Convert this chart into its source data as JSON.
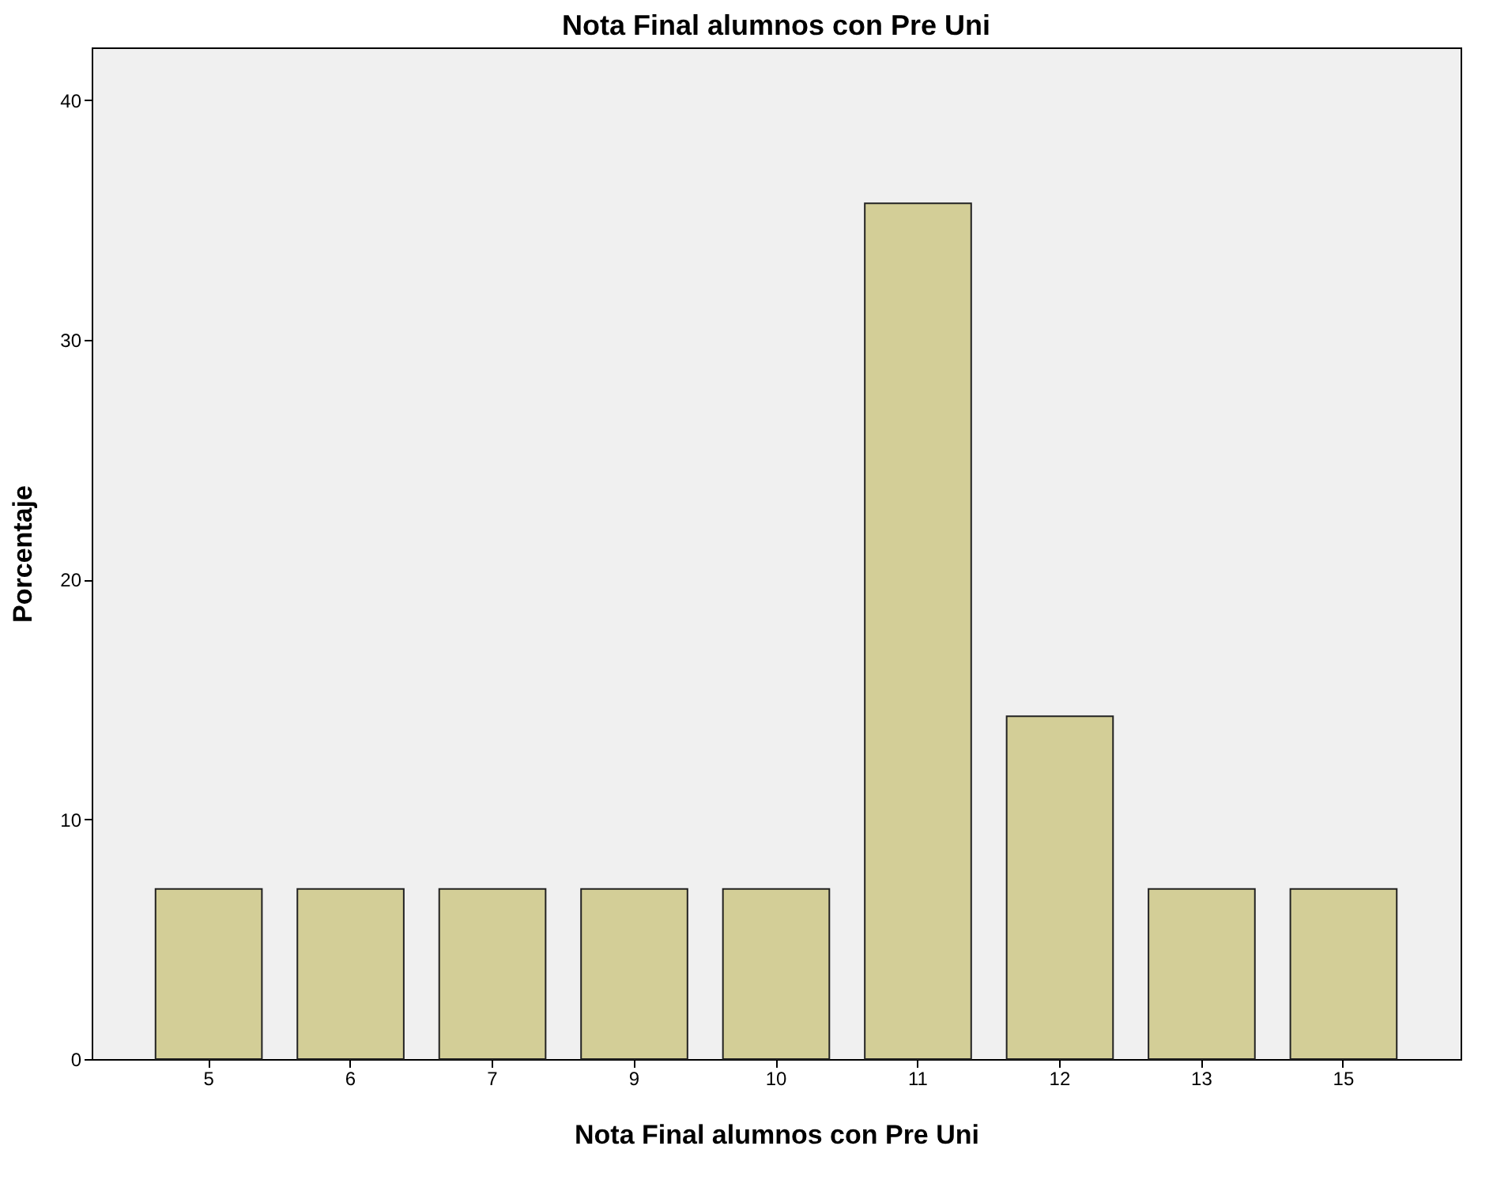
{
  "chart_data": {
    "type": "bar",
    "title": "Nota Final alumnos con Pre Uni",
    "xlabel": "Nota Final alumnos con Pre Uni",
    "ylabel": "Porcentaje",
    "categories": [
      "5",
      "6",
      "7",
      "9",
      "10",
      "11",
      "12",
      "13",
      "15"
    ],
    "values": [
      7.1,
      7.1,
      7.1,
      7.1,
      7.1,
      35.7,
      14.3,
      7.1,
      7.1
    ],
    "color": "#d3ce97",
    "ylim": [
      0,
      42.2
    ],
    "yticks": [
      0,
      10,
      20,
      30,
      40
    ],
    "grid": false
  }
}
